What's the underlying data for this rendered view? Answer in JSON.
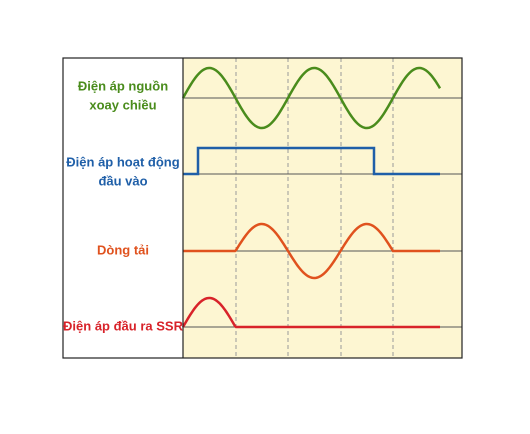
{
  "signals": [
    {
      "label": [
        "Điện áp nguồn",
        "xoay chiều"
      ]
    },
    {
      "label": [
        "Điện áp hoạt động",
        "đầu vào"
      ]
    },
    {
      "label": [
        "Dòng tải"
      ]
    },
    {
      "label": [
        "Điện áp đầu ra SSR"
      ]
    }
  ]
}
